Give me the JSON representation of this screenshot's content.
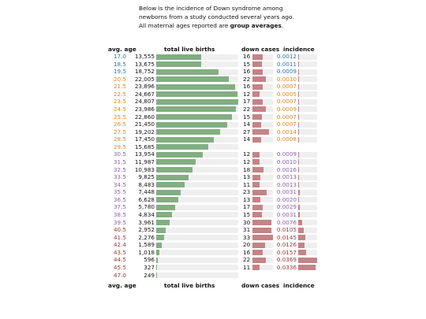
{
  "intro": {
    "line1": "Below is the incidence of Down syndrome among",
    "line2": "newborns from a study conducted several years ago.",
    "line3_prefix": "All maternal ages reported are ",
    "line3_bold": "group averages",
    "line3_suffix": "."
  },
  "headers": {
    "age": "avg. age",
    "births": "total live births",
    "cases": "down cases",
    "incidence": "incidence"
  },
  "colors": {
    "group_young": "#2e74ad",
    "group_mid": "#dd8620",
    "group_older": "#8a5fae",
    "group_oldest": "#9b3a3a",
    "births_bar": "#82ae82",
    "cases_bar": "#c38486",
    "track": "#efefef"
  },
  "chart_data": {
    "type": "table",
    "columns": [
      "avg. age",
      "total live births",
      "down cases",
      "incidence"
    ],
    "rows": [
      {
        "age": "17.0",
        "births": "13,555",
        "births_value": 13555,
        "cases": "16",
        "incidence": "0.0012",
        "incidence_value": 0.0012,
        "group": "group_young"
      },
      {
        "age": "18.5",
        "births": "13,675",
        "births_value": 13675,
        "cases": "15",
        "incidence": "0.0011",
        "incidence_value": 0.0011,
        "group": "group_young"
      },
      {
        "age": "19.5",
        "births": "18,752",
        "births_value": 18752,
        "cases": "16",
        "incidence": "0.0009",
        "incidence_value": 0.0009,
        "group": "group_young"
      },
      {
        "age": "20.5",
        "births": "22,005",
        "births_value": 22005,
        "cases": "22",
        "incidence": "0.0010",
        "incidence_value": 0.001,
        "group": "group_mid"
      },
      {
        "age": "21.5",
        "births": "23,896",
        "births_value": 23896,
        "cases": "16",
        "incidence": "0.0007",
        "incidence_value": 0.0007,
        "group": "group_mid"
      },
      {
        "age": "22.5",
        "births": "24,667",
        "births_value": 24667,
        "cases": "12",
        "incidence": "0.0005",
        "incidence_value": 0.0005,
        "group": "group_mid"
      },
      {
        "age": "23.5",
        "births": "24,807",
        "births_value": 24807,
        "cases": "17",
        "incidence": "0.0007",
        "incidence_value": 0.0007,
        "group": "group_mid"
      },
      {
        "age": "24.5",
        "births": "23,986",
        "births_value": 23986,
        "cases": "22",
        "incidence": "0.0009",
        "incidence_value": 0.0009,
        "group": "group_mid"
      },
      {
        "age": "25.5",
        "births": "22,860",
        "births_value": 22860,
        "cases": "15",
        "incidence": "0.0007",
        "incidence_value": 0.0007,
        "group": "group_mid"
      },
      {
        "age": "26.5",
        "births": "21,450",
        "births_value": 21450,
        "cases": "14",
        "incidence": "0.0007",
        "incidence_value": 0.0007,
        "group": "group_mid"
      },
      {
        "age": "27.5",
        "births": "19,202",
        "births_value": 19202,
        "cases": "27",
        "incidence": "0.0014",
        "incidence_value": 0.0014,
        "group": "group_mid"
      },
      {
        "age": "28.5",
        "births": "17,450",
        "births_value": 17450,
        "cases": "14",
        "incidence": "0.0008",
        "incidence_value": 0.0008,
        "group": "group_mid"
      },
      {
        "age": "29.5",
        "births": "15,685",
        "births_value": 15685,
        "cases": "",
        "incidence": "",
        "incidence_value": null,
        "group": "group_mid"
      },
      {
        "age": "30.5",
        "births": "13,954",
        "births_value": 13954,
        "cases": "12",
        "incidence": "0.0009",
        "incidence_value": 0.0009,
        "group": "group_older"
      },
      {
        "age": "31.5",
        "births": "11,987",
        "births_value": 11987,
        "cases": "12",
        "incidence": "0.0010",
        "incidence_value": 0.001,
        "group": "group_older"
      },
      {
        "age": "32.5",
        "births": "10,983",
        "births_value": 10983,
        "cases": "18",
        "incidence": "0.0016",
        "incidence_value": 0.0016,
        "group": "group_older"
      },
      {
        "age": "33.5",
        "births": "9,825",
        "births_value": 9825,
        "cases": "13",
        "incidence": "0.0013",
        "incidence_value": 0.0013,
        "group": "group_older"
      },
      {
        "age": "34.5",
        "births": "8,483",
        "births_value": 8483,
        "cases": "11",
        "incidence": "0.0013",
        "incidence_value": 0.0013,
        "group": "group_older"
      },
      {
        "age": "35.5",
        "births": "7,448",
        "births_value": 7448,
        "cases": "23",
        "incidence": "0.0031",
        "incidence_value": 0.0031,
        "group": "group_older"
      },
      {
        "age": "36.5",
        "births": "6,628",
        "births_value": 6628,
        "cases": "13",
        "incidence": "0.0020",
        "incidence_value": 0.002,
        "group": "group_older"
      },
      {
        "age": "37.5",
        "births": "5,780",
        "births_value": 5780,
        "cases": "17",
        "incidence": "0.0029",
        "incidence_value": 0.0029,
        "group": "group_older"
      },
      {
        "age": "38.5",
        "births": "4,834",
        "births_value": 4834,
        "cases": "15",
        "incidence": "0.0031",
        "incidence_value": 0.0031,
        "group": "group_older"
      },
      {
        "age": "39.5",
        "births": "3,961",
        "births_value": 3961,
        "cases": "30",
        "incidence": "0.0076",
        "incidence_value": 0.0076,
        "group": "group_older"
      },
      {
        "age": "40.5",
        "births": "2,952",
        "births_value": 2952,
        "cases": "31",
        "incidence": "0.0105",
        "incidence_value": 0.0105,
        "group": "group_oldest"
      },
      {
        "age": "41.5",
        "births": "2,276",
        "births_value": 2276,
        "cases": "33",
        "incidence": "0.0145",
        "incidence_value": 0.0145,
        "group": "group_oldest"
      },
      {
        "age": "42.4",
        "births": "1,589",
        "births_value": 1589,
        "cases": "20",
        "incidence": "0.0126",
        "incidence_value": 0.0126,
        "group": "group_oldest"
      },
      {
        "age": "43.5",
        "births": "1,018",
        "births_value": 1018,
        "cases": "16",
        "incidence": "0.0157",
        "incidence_value": 0.0157,
        "group": "group_oldest"
      },
      {
        "age": "44.5",
        "births": "596",
        "births_value": 596,
        "cases": "22",
        "incidence": "0.0369",
        "incidence_value": 0.0369,
        "group": "group_oldest"
      },
      {
        "age": "45.5",
        "births": "327",
        "births_value": 327,
        "cases": "11",
        "incidence": "0.0336",
        "incidence_value": 0.0336,
        "group": "group_oldest"
      },
      {
        "age": "47.0",
        "births": "249",
        "births_value": 249,
        "cases": "",
        "incidence": "",
        "incidence_value": null,
        "group": "group_oldest"
      }
    ]
  }
}
